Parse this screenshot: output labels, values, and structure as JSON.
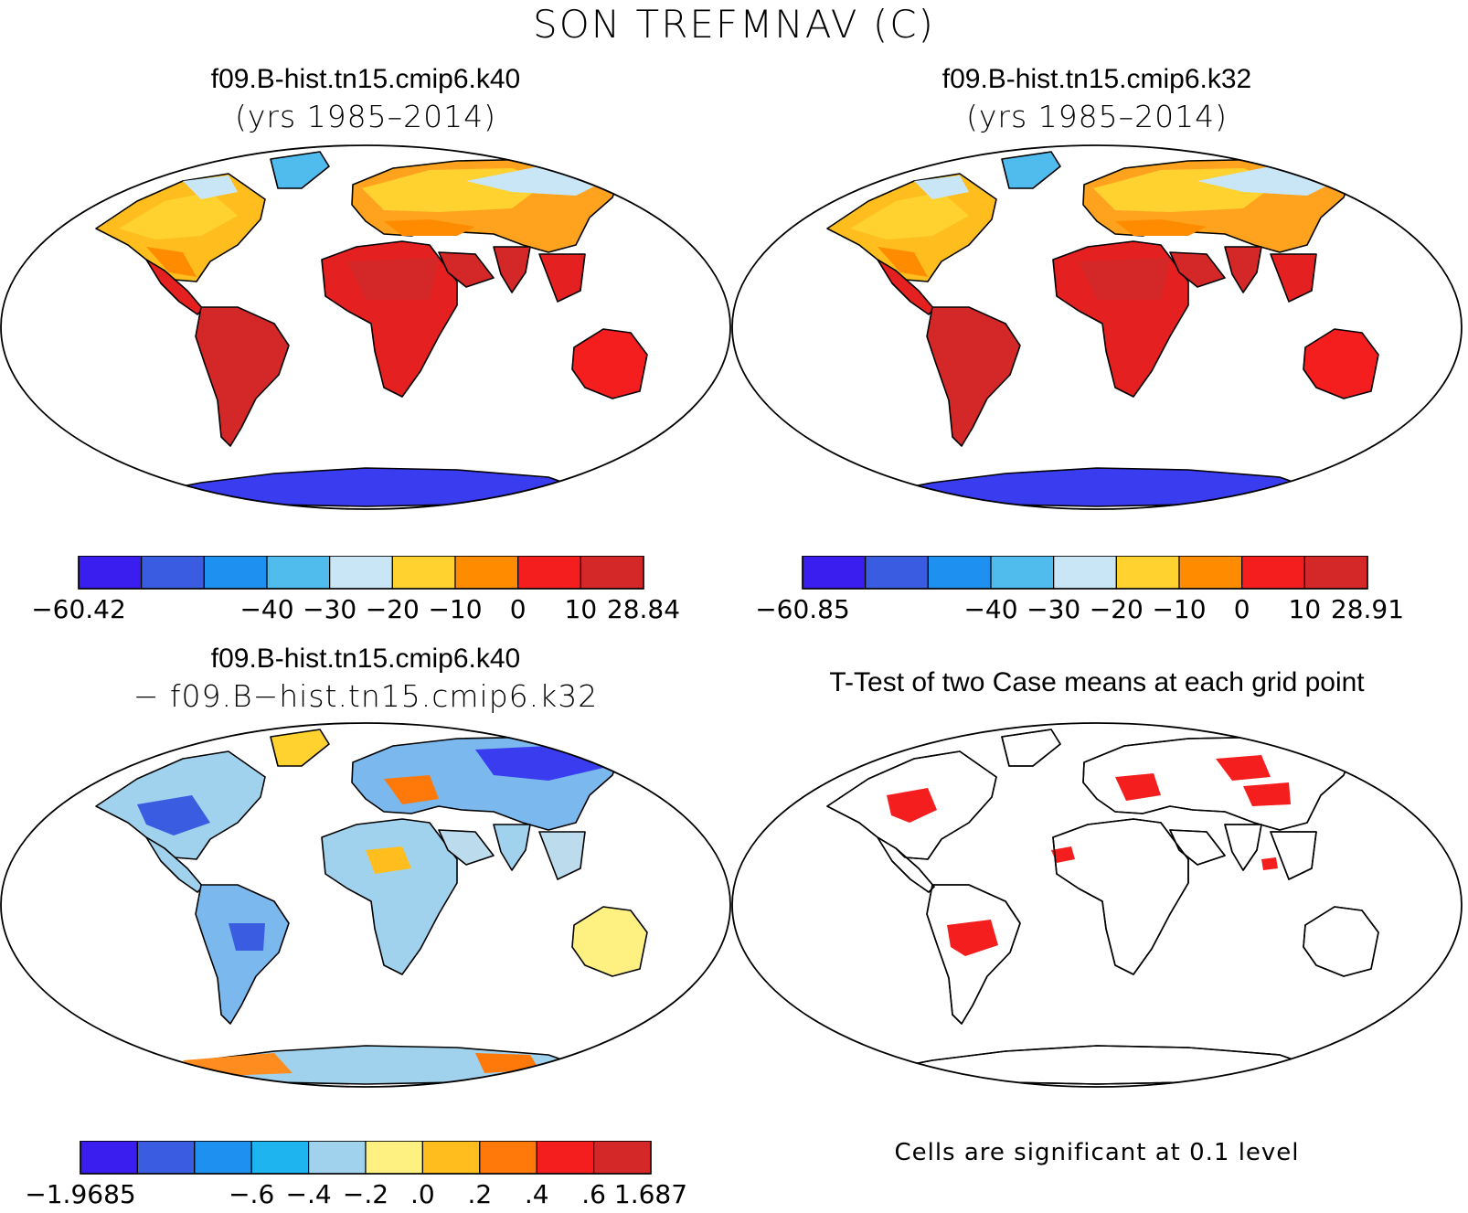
{
  "title": "SON TREFMNAV (C)",
  "panels": {
    "top_left": {
      "title": "f09.B-hist.tn15.cmip6.k40",
      "subtitle": "(yrs 1985–2014)",
      "colorbar": {
        "colors": [
          "#3a1ef0",
          "#3a5ce0",
          "#1e90f0",
          "#50bcee",
          "#c8e6f6",
          "#ffd230",
          "#ff8c00",
          "#f51e1e",
          "#d42828"
        ],
        "labels": [
          "−60.42",
          "−40",
          "−30",
          "−20",
          "−10",
          "0",
          "10",
          "28.84"
        ]
      }
    },
    "top_right": {
      "title": "f09.B-hist.tn15.cmip6.k32",
      "subtitle": "(yrs 1985–2014)",
      "colorbar": {
        "colors": [
          "#3a1ef0",
          "#3a5ce0",
          "#1e90f0",
          "#50bcee",
          "#c8e6f6",
          "#ffd230",
          "#ff8c00",
          "#f51e1e",
          "#d42828"
        ],
        "labels": [
          "−60.85",
          "−40",
          "−30",
          "−20",
          "−10",
          "0",
          "10",
          "28.91"
        ]
      }
    },
    "bottom_left": {
      "title": "f09.B-hist.tn15.cmip6.k40",
      "subtitle": "− f09.B−hist.tn15.cmip6.k32",
      "colorbar": {
        "colors": [
          "#3a1ef0",
          "#3a5ce0",
          "#1e90f0",
          "#1eb4f0",
          "#a0d2ee",
          "#fff082",
          "#ffbe1e",
          "#ff780a",
          "#f51e1e",
          "#d42828"
        ],
        "labels": [
          "−1.9685",
          "−.6",
          "−.4",
          "−.2",
          ".0",
          ".2",
          ".4",
          ".6",
          "1.687"
        ]
      }
    },
    "bottom_right": {
      "title": "T-Test of two Case means at each grid point",
      "note": "Cells are significant at 0.1 level"
    }
  }
}
